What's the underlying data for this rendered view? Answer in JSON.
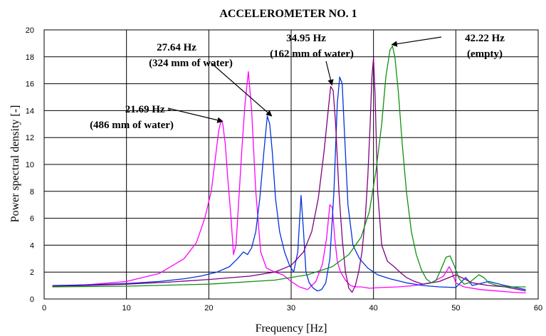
{
  "chart_data": {
    "type": "line",
    "title": "ACCELEROMETER NO. 1",
    "xlabel": "Frequency [Hz]",
    "ylabel": "Power spectral density [-]",
    "xlim": [
      0,
      60
    ],
    "ylim": [
      0,
      20
    ],
    "xticks": [
      0,
      10,
      20,
      30,
      40,
      50,
      60
    ],
    "yticks": [
      0,
      2,
      4,
      6,
      8,
      10,
      12,
      14,
      16,
      18,
      20
    ],
    "grid": true,
    "colors": {
      "magenta": "#ff00ff",
      "blue": "#0033dd",
      "purple": "#800080",
      "green": "#109010"
    },
    "series": [
      {
        "color": "#ff00ff",
        "x": [
          1,
          5,
          10,
          14,
          17,
          18.5,
          19.5,
          20.3,
          20.8,
          21.2,
          21.5,
          21.7,
          22.0,
          22.3,
          22.7,
          23.0,
          23.3,
          23.6,
          24.0,
          24.4,
          24.8,
          25.2,
          25.7,
          26.3,
          27.0,
          28.0,
          29.0,
          30.0,
          31.0,
          32.0,
          33.0,
          33.8,
          34.3,
          34.7,
          35.0,
          35.3,
          35.6,
          36.0,
          36.6,
          37.2,
          37.8,
          38.5,
          39.5,
          41.0,
          43.0,
          45.0,
          47.0,
          48.5,
          49.2,
          49.6,
          50.0,
          51.0,
          53.0,
          55.0,
          57.0,
          58.5
        ],
        "y": [
          0.95,
          1.05,
          1.3,
          1.9,
          3.0,
          4.2,
          6.0,
          8.0,
          10.5,
          12.5,
          13.3,
          13.0,
          11.5,
          9.0,
          6.0,
          3.3,
          4.0,
          7.0,
          11.0,
          14.5,
          16.9,
          14.0,
          8.0,
          3.5,
          2.3,
          2.0,
          1.8,
          1.3,
          0.9,
          0.7,
          1.3,
          2.6,
          4.5,
          7.0,
          6.8,
          4.5,
          2.8,
          2.0,
          1.4,
          1.0,
          0.9,
          0.9,
          0.8,
          0.85,
          0.9,
          1.0,
          1.2,
          1.7,
          2.4,
          1.9,
          1.2,
          0.9,
          0.7,
          0.6,
          0.5,
          0.45
        ]
      },
      {
        "color": "#0033dd",
        "x": [
          1,
          5,
          10,
          14,
          17,
          19,
          21,
          22.5,
          23.5,
          24.2,
          24.7,
          25.2,
          25.7,
          26.2,
          26.7,
          27.1,
          27.4,
          27.7,
          28.1,
          28.6,
          29.2,
          29.8,
          30.3,
          30.8,
          31.2,
          31.5,
          31.8,
          32.2,
          32.7,
          33.2,
          33.7,
          34.2,
          34.7,
          35.2,
          35.6,
          35.9,
          36.2,
          36.5,
          36.9,
          37.5,
          38.3,
          39.3,
          40.5,
          42.0,
          44.0,
          46.0,
          48.0,
          50.0,
          51.2,
          52.0,
          54.0,
          56.0,
          58.5
        ],
        "y": [
          1.0,
          1.05,
          1.15,
          1.3,
          1.5,
          1.7,
          2.0,
          2.4,
          3.0,
          3.5,
          3.3,
          3.8,
          5.0,
          7.5,
          11.0,
          13.6,
          13.0,
          11.0,
          7.5,
          5.0,
          3.5,
          2.5,
          2.0,
          3.5,
          7.7,
          5.0,
          2.0,
          1.2,
          0.8,
          0.6,
          0.7,
          1.2,
          3.0,
          8.0,
          14.5,
          16.5,
          16.0,
          12.0,
          7.0,
          4.0,
          3.0,
          2.3,
          1.8,
          1.5,
          1.2,
          1.0,
          0.9,
          0.85,
          1.6,
          1.0,
          1.3,
          1.0,
          0.7
        ]
      },
      {
        "color": "#800080",
        "x": [
          1,
          5,
          10,
          15,
          20,
          25,
          28,
          30,
          31.5,
          32.5,
          33.3,
          34.0,
          34.5,
          34.8,
          35.1,
          35.4,
          35.8,
          36.2,
          36.6,
          37.0,
          37.4,
          37.8,
          38.2,
          38.6,
          39.0,
          39.3,
          39.6,
          39.8,
          40.0,
          40.2,
          40.5,
          41.0,
          41.7,
          42.5,
          43.2,
          44.0,
          45.0,
          46.0,
          48.0,
          50.0,
          52.0,
          54.0,
          56.0,
          58.5
        ],
        "y": [
          0.95,
          1.0,
          1.1,
          1.25,
          1.45,
          1.7,
          2.0,
          2.5,
          3.5,
          5.0,
          7.5,
          11.0,
          14.0,
          15.8,
          15.5,
          13.0,
          8.0,
          4.5,
          2.0,
          0.8,
          0.5,
          1.0,
          2.0,
          3.5,
          6.0,
          9.0,
          13.0,
          16.5,
          17.9,
          15.0,
          8.0,
          4.0,
          2.8,
          2.4,
          2.0,
          1.6,
          1.3,
          1.1,
          1.3,
          1.8,
          1.2,
          1.0,
          0.9,
          0.6
        ]
      },
      {
        "color": "#109010",
        "x": [
          1,
          10,
          20,
          28,
          32,
          35,
          37,
          38.5,
          39.5,
          40.3,
          41.0,
          41.5,
          42.0,
          42.3,
          42.6,
          43.0,
          43.5,
          44.0,
          44.6,
          45.2,
          45.8,
          46.4,
          47.0,
          47.6,
          48.2,
          48.8,
          49.3,
          49.8,
          50.4,
          51.0,
          51.6,
          52.2,
          52.8,
          53.4,
          54.0,
          55.0,
          56.5,
          58.5
        ],
        "y": [
          0.9,
          0.95,
          1.1,
          1.4,
          1.8,
          2.4,
          3.3,
          4.6,
          6.5,
          9.5,
          13.0,
          16.5,
          18.5,
          18.8,
          18.0,
          15.5,
          11.5,
          8.0,
          5.0,
          3.3,
          2.2,
          1.5,
          1.2,
          1.4,
          2.2,
          3.1,
          3.2,
          2.5,
          1.5,
          1.1,
          1.2,
          1.5,
          1.8,
          1.6,
          1.2,
          1.0,
          0.9,
          0.9
        ]
      }
    ],
    "annotations": [
      {
        "line1": "21.69 Hz -",
        "line2": "(486 mm of water)",
        "target_x": 21.69,
        "target_y": 13.2
      },
      {
        "line1": "27.64 Hz",
        "line2": "(324 mm of water)",
        "target_x": 27.64,
        "target_y": 13.6
      },
      {
        "line1": "34.95 Hz",
        "line2": "(162 mm of water)",
        "target_x": 34.95,
        "target_y": 15.9
      },
      {
        "line1": "42.22 Hz",
        "line2": "(empty)",
        "target_x": 42.22,
        "target_y": 18.9
      }
    ]
  }
}
